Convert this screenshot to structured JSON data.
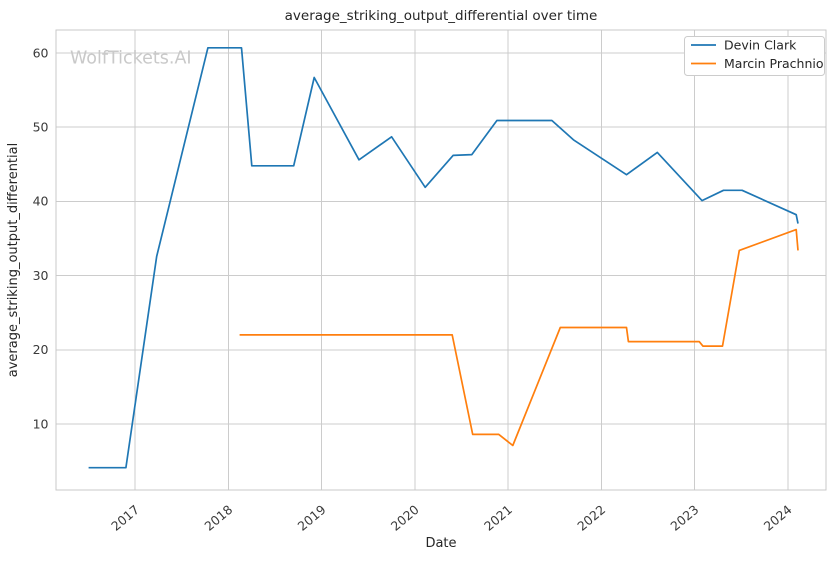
{
  "watermark": {
    "text": "WolfTickets.AI",
    "color": "#c9c9c9"
  },
  "colors": {
    "background": "#ffffff",
    "grid": "#cccccc",
    "spine": "#c9c9c9",
    "title_text": "#262626",
    "tick_text": "#3a3a3a",
    "legend_border": "#cccccc",
    "legend_bg": "#ffffff"
  },
  "chart_data": {
    "type": "line",
    "title": "average_striking_output_differential over time",
    "xlabel": "Date",
    "ylabel": "average_striking_output_differential",
    "xlim": [
      2016.15,
      2024.41
    ],
    "ylim": [
      1.1,
      63.1
    ],
    "x_ticks": [
      2017,
      2018,
      2019,
      2020,
      2021,
      2022,
      2023,
      2024
    ],
    "y_ticks": [
      10,
      20,
      30,
      40,
      50,
      60
    ],
    "grid": true,
    "legend_position": "upper right",
    "series": [
      {
        "name": "Devin Clark",
        "color": "#1f77b4",
        "points": [
          [
            2016.5,
            4.1
          ],
          [
            2016.9,
            4.1
          ],
          [
            2017.23,
            32.6
          ],
          [
            2017.78,
            60.7
          ],
          [
            2018.14,
            60.7
          ],
          [
            2018.25,
            44.8
          ],
          [
            2018.7,
            44.8
          ],
          [
            2018.92,
            56.7
          ],
          [
            2019.4,
            45.6
          ],
          [
            2019.75,
            48.7
          ],
          [
            2020.11,
            41.9
          ],
          [
            2020.41,
            46.2
          ],
          [
            2020.61,
            46.3
          ],
          [
            2020.88,
            50.9
          ],
          [
            2021.47,
            50.9
          ],
          [
            2021.7,
            48.3
          ],
          [
            2022.27,
            43.6
          ],
          [
            2022.6,
            46.6
          ],
          [
            2023.08,
            40.1
          ],
          [
            2023.31,
            41.5
          ],
          [
            2023.51,
            41.5
          ],
          [
            2024.09,
            38.2
          ],
          [
            2024.11,
            37.0
          ]
        ]
      },
      {
        "name": "Marcin Prachnio",
        "color": "#ff7f0e",
        "points": [
          [
            2018.12,
            22.0
          ],
          [
            2020.4,
            22.0
          ],
          [
            2020.62,
            8.6
          ],
          [
            2020.9,
            8.6
          ],
          [
            2021.05,
            7.1
          ],
          [
            2021.56,
            23.0
          ],
          [
            2022.27,
            23.0
          ],
          [
            2022.29,
            21.1
          ],
          [
            2023.05,
            21.1
          ],
          [
            2023.09,
            20.5
          ],
          [
            2023.3,
            20.5
          ],
          [
            2023.48,
            33.4
          ],
          [
            2024.09,
            36.2
          ],
          [
            2024.11,
            33.4
          ]
        ]
      }
    ]
  }
}
